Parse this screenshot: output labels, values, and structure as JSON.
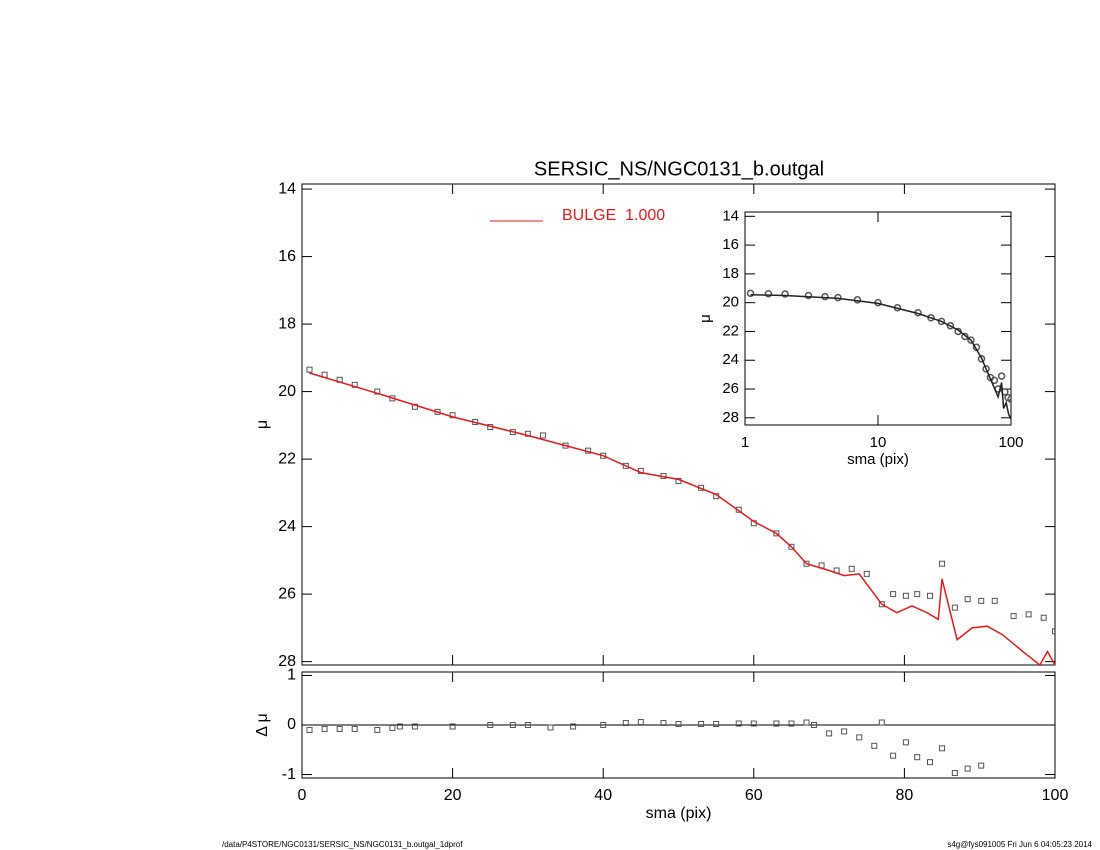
{
  "chart_data": [
    {
      "type": "line",
      "title": "SERSIC_NS/NGC0131_b.outgal",
      "ylabel": "μ",
      "xlim": [
        0,
        100
      ],
      "ylim": [
        13.85,
        28.1
      ],
      "xticks": [
        0,
        20,
        40,
        60,
        80,
        100
      ],
      "yticks": [
        14,
        16,
        18,
        20,
        22,
        24,
        26,
        28
      ],
      "xtick_labels": false,
      "inverted_y": true,
      "series": [
        {
          "color": "#555555",
          "marker": "square",
          "x": [
            1,
            3,
            5,
            7,
            10,
            12,
            15,
            18,
            20,
            23,
            25,
            28,
            30,
            32,
            35,
            38,
            40,
            43,
            45,
            48,
            50,
            53,
            55,
            58,
            60,
            63,
            65,
            67,
            69,
            71,
            73,
            75,
            77,
            78.5,
            80.2,
            81.7,
            83.4,
            85,
            86.7,
            88.4,
            90.2,
            92,
            94.5,
            96.5,
            98.5,
            100
          ],
          "values": [
            19.35,
            19.5,
            19.65,
            19.8,
            20.0,
            20.2,
            20.45,
            20.6,
            20.7,
            20.9,
            21.05,
            21.2,
            21.25,
            21.3,
            21.6,
            21.75,
            21.9,
            22.2,
            22.35,
            22.5,
            22.65,
            22.85,
            23.1,
            23.5,
            23.9,
            24.2,
            24.6,
            25.1,
            25.15,
            25.3,
            25.25,
            25.4,
            26.3,
            26.0,
            26.05,
            26.0,
            26.05,
            25.1,
            26.4,
            26.15,
            26.2,
            26.2,
            26.65,
            26.6,
            26.7,
            27.1
          ]
        },
        {
          "name": "BULGE  1.000",
          "color": "#e41a1c",
          "x": [
            1,
            10,
            20,
            30,
            35,
            40,
            45,
            50,
            55,
            60,
            63,
            65,
            67,
            70,
            72,
            74,
            77,
            79,
            81,
            83,
            84.5,
            85,
            87,
            89,
            91,
            93,
            96,
            98,
            99,
            100
          ],
          "values": [
            19.45,
            20.05,
            20.75,
            21.3,
            21.6,
            21.9,
            22.4,
            22.6,
            23.05,
            23.85,
            24.2,
            24.6,
            25.1,
            25.3,
            25.45,
            25.4,
            26.3,
            26.55,
            26.35,
            26.55,
            26.75,
            25.55,
            27.35,
            27.0,
            26.95,
            27.2,
            27.75,
            28.1,
            27.7,
            28.1
          ]
        }
      ]
    },
    {
      "type": "scatter",
      "xlabel": "sma (pix)",
      "ylabel": "Δ μ",
      "xlim": [
        0,
        100
      ],
      "ylim": [
        -1.07,
        1.07
      ],
      "xticks": [
        0,
        20,
        40,
        60,
        80,
        100
      ],
      "yticks": [
        -1,
        0,
        1
      ],
      "xtick_labels": true,
      "reference_line": 0,
      "series": [
        {
          "color": "#555555",
          "marker": "square",
          "x": [
            1,
            3,
            5,
            7,
            10,
            12,
            13,
            15,
            20,
            25,
            28,
            30,
            33,
            36,
            40,
            43,
            45,
            48,
            50,
            53,
            55,
            58,
            60,
            63,
            65,
            67,
            68,
            70,
            72,
            74,
            76,
            77,
            78.5,
            80.2,
            81.7,
            83.4,
            85,
            86.7,
            88.4,
            90.2
          ],
          "values": [
            -0.1,
            -0.08,
            -0.08,
            -0.08,
            -0.1,
            -0.06,
            -0.03,
            -0.03,
            -0.03,
            0,
            0,
            0,
            -0.05,
            -0.03,
            0,
            0.04,
            0.06,
            0.04,
            0.02,
            0.02,
            0.02,
            0.03,
            0.03,
            0.03,
            0.03,
            0.05,
            0,
            -0.17,
            -0.13,
            -0.25,
            -0.42,
            0.05,
            -0.62,
            -0.35,
            -0.65,
            -0.75,
            -0.47,
            -0.97,
            -0.88,
            -0.82
          ]
        }
      ]
    },
    {
      "type": "line",
      "xlabel": "sma (pix)",
      "ylabel": "μ",
      "log_x": true,
      "xlim": [
        1,
        100
      ],
      "ylim": [
        13.7,
        28.5
      ],
      "xticks": [
        1,
        10,
        100
      ],
      "yticks": [
        14,
        16,
        18,
        20,
        22,
        24,
        26,
        28
      ],
      "xtick_labels": true,
      "inverted_y": true,
      "series": [
        {
          "color": "#555555",
          "marker": "circle",
          "x": [
            1.1,
            1.5,
            2,
            3,
            4,
            5,
            7,
            10,
            14,
            20,
            25,
            30,
            35,
            40,
            45,
            50,
            55,
            60,
            65,
            70,
            75,
            80,
            85,
            90,
            95,
            100
          ],
          "values": [
            19.35,
            19.38,
            19.4,
            19.5,
            19.58,
            19.65,
            19.8,
            20.0,
            20.35,
            20.7,
            21.05,
            21.3,
            21.6,
            22.0,
            22.35,
            22.6,
            23.1,
            23.9,
            24.6,
            25.2,
            25.4,
            26.0,
            25.1,
            26.2,
            26.6,
            26.7
          ]
        },
        {
          "color": "#222222",
          "x": [
            1.1,
            2,
            5,
            10,
            20,
            30,
            40,
            50,
            60,
            70,
            80,
            85,
            88,
            92,
            96,
            100
          ],
          "values": [
            19.45,
            19.5,
            19.7,
            20.05,
            20.75,
            21.3,
            21.9,
            22.6,
            23.85,
            25.3,
            26.55,
            25.55,
            27.35,
            26.95,
            27.75,
            28.1
          ]
        }
      ]
    }
  ],
  "footer": {
    "left": "/data/P4STORE/NGC0131/SERSIC_NS/NGC0131_b.outgal_1dprof",
    "right": "s4g@fys091005  Fri Jun  6 04:05:23 2014"
  }
}
